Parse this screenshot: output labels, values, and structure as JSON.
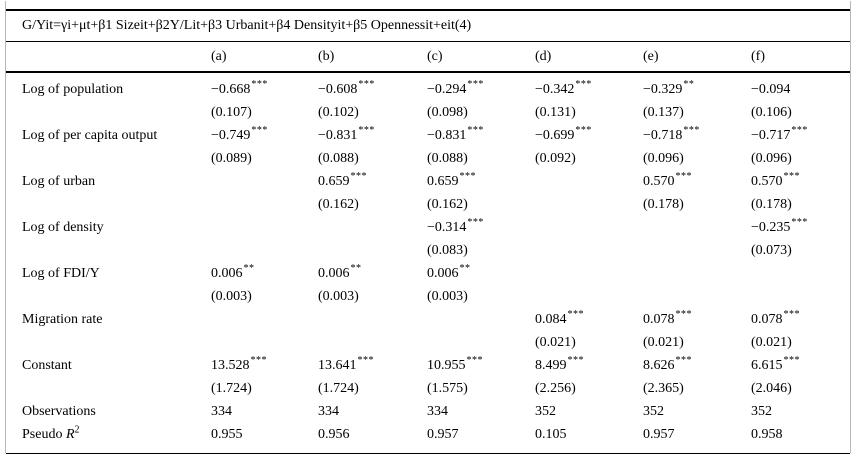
{
  "page": {
    "equation": "G/Yit=γi+μt+β1 Sizeit+β2Y/Lit+β3 Urbanit+β4 Densityit+β5 Opennessit+eit(4)",
    "columns": [
      "(a)",
      "(b)",
      "(c)",
      "(d)",
      "(e)",
      "(f)"
    ],
    "variables": [
      {
        "label": "Log of population",
        "coef": [
          "−0.668",
          "−0.608",
          "−0.294",
          "−0.342",
          "−0.329",
          "−0.094"
        ],
        "stars": [
          "***",
          "***",
          "***",
          "***",
          "**",
          ""
        ],
        "se": [
          "(0.107)",
          "(0.102)",
          "(0.098)",
          "(0.131)",
          "(0.137)",
          "(0.106)"
        ]
      },
      {
        "label": "Log of per capita output",
        "coef": [
          "−0.749",
          "−0.831",
          "−0.831",
          "−0.699",
          "−0.718",
          "−0.717"
        ],
        "stars": [
          "***",
          "***",
          "***",
          "***",
          "***",
          "***"
        ],
        "se": [
          "(0.089)",
          "(0.088)",
          "(0.088)",
          "(0.092)",
          "(0.096)",
          "(0.096)"
        ]
      },
      {
        "label": "Log of urban",
        "coef": [
          "",
          "0.659",
          "0.659",
          "",
          "0.570",
          "0.570"
        ],
        "stars": [
          "",
          "***",
          "***",
          "",
          "***",
          "***"
        ],
        "se": [
          "",
          "(0.162)",
          "(0.162)",
          "",
          "(0.178)",
          "(0.178)"
        ]
      },
      {
        "label": "Log of density",
        "coef": [
          "",
          "",
          "−0.314",
          "",
          "",
          "−0.235"
        ],
        "stars": [
          "",
          "",
          "***",
          "",
          "",
          "***"
        ],
        "se": [
          "",
          "",
          "(0.083)",
          "",
          "",
          "(0.073)"
        ]
      },
      {
        "label": "Log of FDI/Y",
        "coef": [
          "0.006",
          "0.006",
          "0.006",
          "",
          "",
          ""
        ],
        "stars": [
          "**",
          "**",
          "**",
          "",
          "",
          ""
        ],
        "se": [
          "(0.003)",
          "(0.003)",
          "(0.003)",
          "",
          "",
          ""
        ]
      },
      {
        "label": "Migration rate",
        "coef": [
          "",
          "",
          "",
          "0.084",
          "0.078",
          "0.078"
        ],
        "stars": [
          "",
          "",
          "",
          "***",
          "***",
          "***"
        ],
        "se": [
          "",
          "",
          "",
          "(0.021)",
          "(0.021)",
          "(0.021)"
        ]
      },
      {
        "label": "Constant",
        "coef": [
          "13.528",
          "13.641",
          "10.955",
          "8.499",
          "8.626",
          "6.615"
        ],
        "stars": [
          "***",
          "***",
          "***",
          "***",
          "***",
          "***"
        ],
        "se": [
          "(1.724)",
          "(1.724)",
          "(1.575)",
          "(2.256)",
          "(2.365)",
          "(2.046)"
        ]
      }
    ],
    "stats": [
      {
        "prefix": "Observations",
        "italic": "",
        "sup": "",
        "values": [
          "334",
          "334",
          "334",
          "352",
          "352",
          "352"
        ]
      },
      {
        "prefix": "Pseudo ",
        "italic": "R",
        "sup": "2",
        "values": [
          "0.955",
          "0.956",
          "0.957",
          "0.105",
          "0.957",
          "0.958"
        ]
      }
    ]
  }
}
